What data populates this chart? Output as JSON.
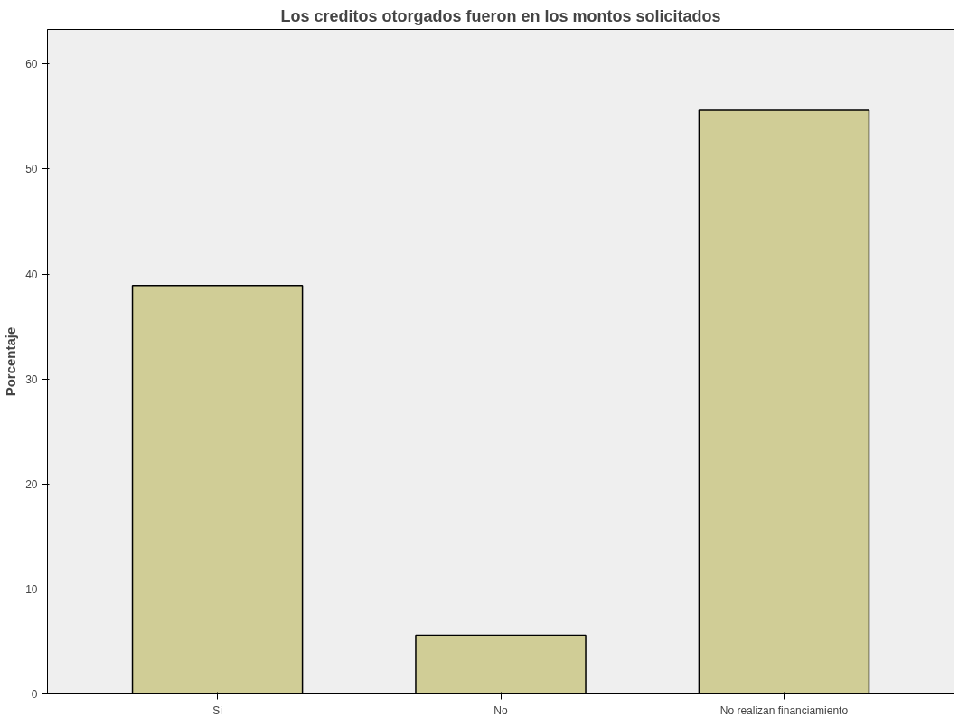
{
  "chart_data": {
    "type": "bar",
    "title": "Los creditos otorgados fueron en los montos solicitados",
    "ylabel": "Porcentaje",
    "categories": [
      "Si",
      "No",
      "No realizan financiamiento"
    ],
    "values": [
      38.9,
      5.6,
      55.6
    ],
    "color": "#d0cd96",
    "ylim": [
      0,
      63.3
    ],
    "yticks": [
      0,
      10,
      20,
      30,
      40,
      50,
      60
    ],
    "grid": false
  }
}
